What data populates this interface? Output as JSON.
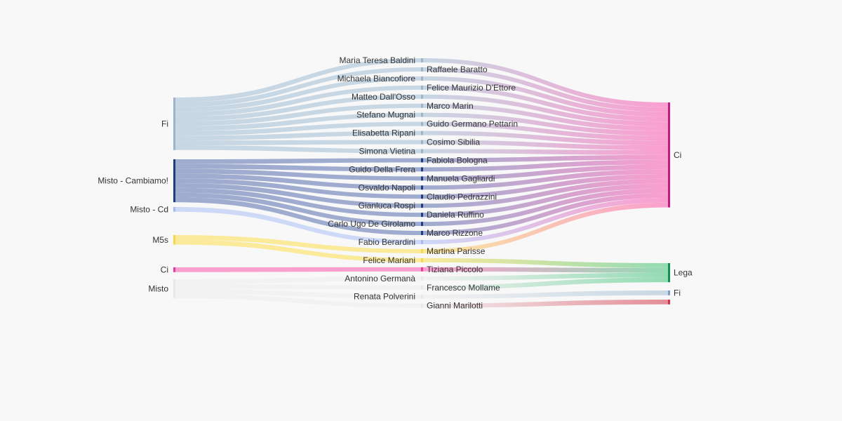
{
  "chart_data": {
    "type": "sankey",
    "colors": {
      "Fi": "#bfd1e0",
      "Misto - Cambiamo!": "#8f9fc8",
      "Misto - Cd": "#c6d3f7",
      "M5s": "#fae78a",
      "Ci": "#fb8fc8",
      "Misto": "#f1f1f1",
      "Lega": "#82d6a7",
      "Fi_target": "#bfd1e0",
      "Pd": "#e07a86"
    },
    "left_groups": [
      {
        "id": "fi",
        "label": "Fi",
        "color_key": "Fi",
        "bar_color": "#9db3c7",
        "members": [
          "Maria Teresa Baldini",
          "Raffaele Baratto",
          "Michaela Biancofiore",
          "Felice Maurizio D'Ettore",
          "Matteo Dall'Osso",
          "Marco Marin",
          "Stefano Mugnai",
          "Guido Germano Pettarin",
          "Elisabetta Ripani",
          "Cosimo Sibilia",
          "Simona Vietina"
        ]
      },
      {
        "id": "mc",
        "label": "Misto - Cambiamo!",
        "color_key": "Misto - Cambiamo!",
        "bar_color": "#1d3d80",
        "members": [
          "Fabiola Bologna",
          "Guido Della Frera",
          "Manuela Gagliardi",
          "Osvaldo Napoli",
          "Claudio Pedrazzini",
          "Gianluca Rospi",
          "Daniela Ruffino",
          "Carlo Ugo De Girolamo",
          "Marco Rizzone"
        ]
      },
      {
        "id": "mcd",
        "label": "Misto - Cd",
        "color_key": "Misto - Cd",
        "bar_color": "#a9b9f0",
        "members": [
          "Fabio Berardini"
        ]
      },
      {
        "id": "m5s",
        "label": "M5s",
        "color_key": "M5s",
        "bar_color": "#f5d94a",
        "members": [
          "Martina Parisse",
          "Felice Mariani"
        ]
      },
      {
        "id": "ci",
        "label": "Ci",
        "color_key": "Ci",
        "bar_color": "#e63c97",
        "members": [
          "Tiziana Piccolo"
        ]
      },
      {
        "id": "misto",
        "label": "Misto",
        "color_key": "Misto",
        "bar_color": "#e8e8e8",
        "members": [
          "Antonino Germanà",
          "Francesco Mollame",
          "Renata Polverini",
          "Gianni Marilotti"
        ]
      }
    ],
    "middle_nodes": [
      {
        "name": "Maria Teresa Baldini",
        "side": "left"
      },
      {
        "name": "Raffaele Baratto",
        "side": "right"
      },
      {
        "name": "Michaela Biancofiore",
        "side": "left"
      },
      {
        "name": "Felice Maurizio D'Ettore",
        "side": "right"
      },
      {
        "name": "Matteo Dall'Osso",
        "side": "left"
      },
      {
        "name": "Marco Marin",
        "side": "right"
      },
      {
        "name": "Stefano Mugnai",
        "side": "left"
      },
      {
        "name": "Guido Germano Pettarin",
        "side": "right"
      },
      {
        "name": "Elisabetta Ripani",
        "side": "left"
      },
      {
        "name": "Cosimo Sibilia",
        "side": "right"
      },
      {
        "name": "Simona Vietina",
        "side": "left"
      },
      {
        "name": "Fabiola Bologna",
        "side": "right"
      },
      {
        "name": "Guido Della Frera",
        "side": "left"
      },
      {
        "name": "Manuela Gagliardi",
        "side": "right"
      },
      {
        "name": "Osvaldo Napoli",
        "side": "left"
      },
      {
        "name": "Claudio Pedrazzini",
        "side": "right"
      },
      {
        "name": "Gianluca Rospi",
        "side": "left"
      },
      {
        "name": "Daniela Ruffino",
        "side": "right"
      },
      {
        "name": "Carlo Ugo De Girolamo",
        "side": "left"
      },
      {
        "name": "Marco Rizzone",
        "side": "right"
      },
      {
        "name": "Fabio Berardini",
        "side": "left"
      },
      {
        "name": "Martina Parisse",
        "side": "right"
      },
      {
        "name": "Felice Mariani",
        "side": "left"
      },
      {
        "name": "Tiziana Piccolo",
        "side": "right"
      },
      {
        "name": "Antonino Germanà",
        "side": "left"
      },
      {
        "name": "Francesco Mollame",
        "side": "right"
      },
      {
        "name": "Renata Polverini",
        "side": "left"
      },
      {
        "name": "Gianni Marilotti",
        "side": "right"
      }
    ],
    "right_groups": [
      {
        "id": "r_ci",
        "label": "Ci",
        "color_key": "Ci",
        "bar_color": "#c21a84",
        "members": [
          "Maria Teresa Baldini",
          "Raffaele Baratto",
          "Michaela Biancofiore",
          "Felice Maurizio D'Ettore",
          "Matteo Dall'Osso",
          "Marco Marin",
          "Stefano Mugnai",
          "Guido Germano Pettarin",
          "Elisabetta Ripani",
          "Cosimo Sibilia",
          "Simona Vietina",
          "Fabiola Bologna",
          "Guido Della Frera",
          "Manuela Gagliardi",
          "Osvaldo Napoli",
          "Claudio Pedrazzini",
          "Gianluca Rospi",
          "Daniela Ruffino",
          "Carlo Ugo De Girolamo",
          "Marco Rizzone",
          "Fabio Berardini",
          "Martina Parisse"
        ]
      },
      {
        "id": "r_lega",
        "label": "Lega",
        "color_key": "Lega",
        "bar_color": "#0f9150",
        "members": [
          "Felice Mariani",
          "Tiziana Piccolo",
          "Antonino Germanà",
          "Francesco Mollame"
        ]
      },
      {
        "id": "r_fi",
        "label": "Fi",
        "color_key": "Fi_target",
        "bar_color": "#7f9cc2",
        "members": [
          "Renata Polverini"
        ]
      },
      {
        "id": "r_pd",
        "label": "",
        "color_key": "Pd",
        "bar_color": "#d9304a",
        "members": [
          "Gianni Marilotti"
        ]
      }
    ],
    "flow_value": 1
  }
}
